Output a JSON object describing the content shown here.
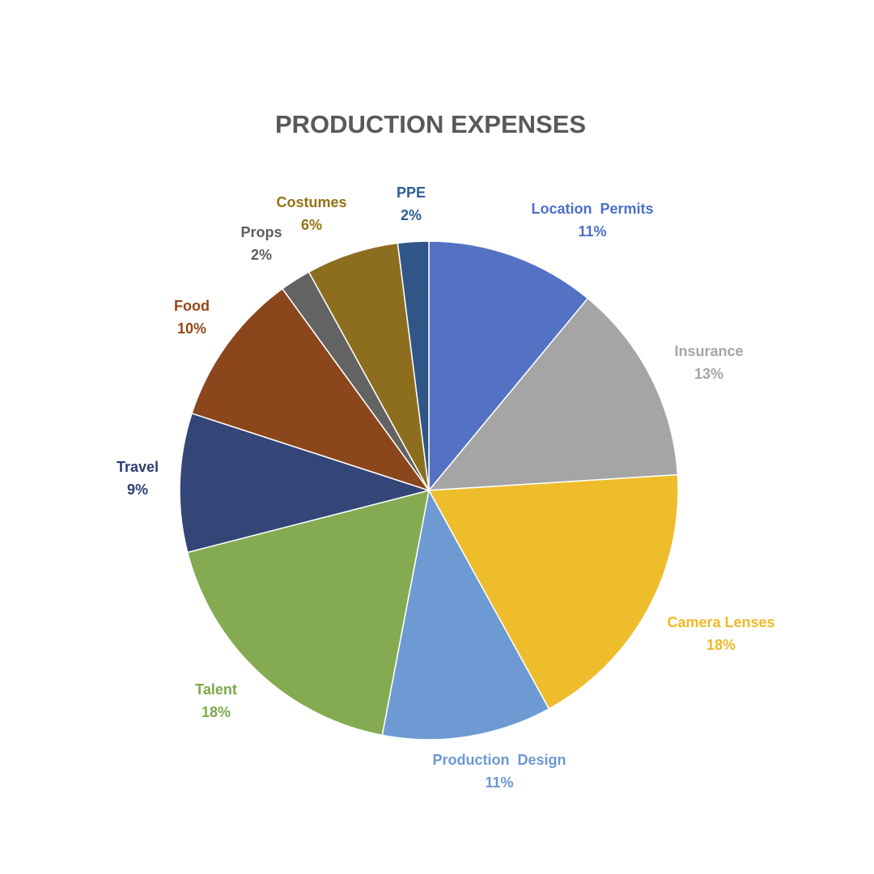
{
  "chart_data": {
    "type": "pie",
    "title": "PRODUCTION EXPENSES",
    "slices": [
      {
        "label": "Location  Permits",
        "value": 11,
        "value_label": "11%",
        "color": "#5472C4",
        "label_color": "#4C6FC7",
        "bold": true
      },
      {
        "label": "Insurance",
        "value": 13,
        "value_label": "13%",
        "color": "#A5A5A5",
        "label_color": "#A5A5A5",
        "bold": false
      },
      {
        "label": "Camera Lenses",
        "value": 18,
        "value_label": "18%",
        "color": "#EEBD2C",
        "label_color": "#EFB925",
        "bold": true
      },
      {
        "label": "Production  Design",
        "value": 11,
        "value_label": "11%",
        "color": "#6E9AD3",
        "label_color": "#6D98D2",
        "bold": true
      },
      {
        "label": "Talent",
        "value": 18,
        "value_label": "18%",
        "color": "#84AB52",
        "label_color": "#7DAA4A",
        "bold": true
      },
      {
        "label": "Travel",
        "value": 9,
        "value_label": "9%",
        "color": "#334677",
        "label_color": "#2C3E73",
        "bold": true
      },
      {
        "label": "Food",
        "value": 10,
        "value_label": "10%",
        "color": "#8C461B",
        "label_color": "#924816",
        "bold": true
      },
      {
        "label": "Props",
        "value": 2,
        "value_label": "2%",
        "color": "#636363",
        "label_color": "#5E5E5E",
        "bold": true
      },
      {
        "label": "Costumes",
        "value": 6,
        "value_label": "6%",
        "color": "#8D6E1F",
        "label_color": "#957214",
        "bold": true
      },
      {
        "label": "PPE",
        "value": 2,
        "value_label": "2%",
        "color": "#2F5686",
        "label_color": "#2E5C98",
        "bold": true
      }
    ],
    "legend": "none",
    "start_angle": "12 o'clock",
    "direction": "clockwise"
  }
}
